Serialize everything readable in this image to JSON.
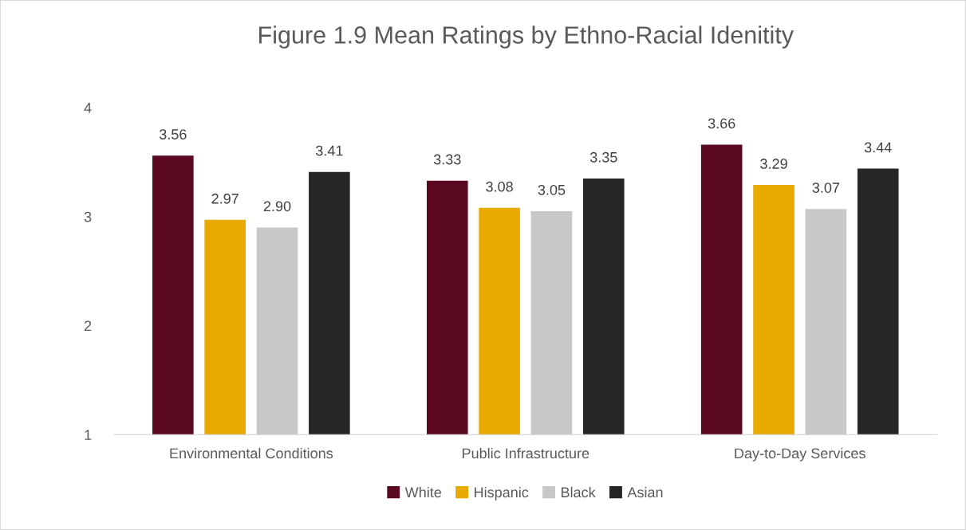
{
  "chart_data": {
    "type": "bar",
    "title": "Figure 1.9 Mean Ratings by Ethno-Racial Idenitity",
    "categories": [
      "Environmental Conditions",
      "Public Infrastructure",
      "Day-to-Day Services"
    ],
    "series": [
      {
        "name": "White",
        "color": "#5a0820",
        "values": [
          3.56,
          3.33,
          3.66
        ],
        "value_labels": [
          "3.56",
          "3.33",
          "3.66"
        ]
      },
      {
        "name": "Hispanic",
        "color": "#e8a900",
        "values": [
          2.97,
          3.08,
          3.29
        ],
        "value_labels": [
          "2.97",
          "3.08",
          "3.29"
        ]
      },
      {
        "name": "Black",
        "color": "#c8c8c8",
        "values": [
          2.9,
          3.05,
          3.07
        ],
        "value_labels": [
          "2.90",
          "3.05",
          "3.07"
        ]
      },
      {
        "name": "Asian",
        "color": "#262626",
        "values": [
          3.41,
          3.35,
          3.44
        ],
        "value_labels": [
          "3.41",
          "3.35",
          "3.44"
        ]
      }
    ],
    "ylim": [
      1,
      4
    ],
    "yticks": [
      1,
      2,
      3,
      4
    ],
    "grid": false,
    "legend": "bottom"
  }
}
